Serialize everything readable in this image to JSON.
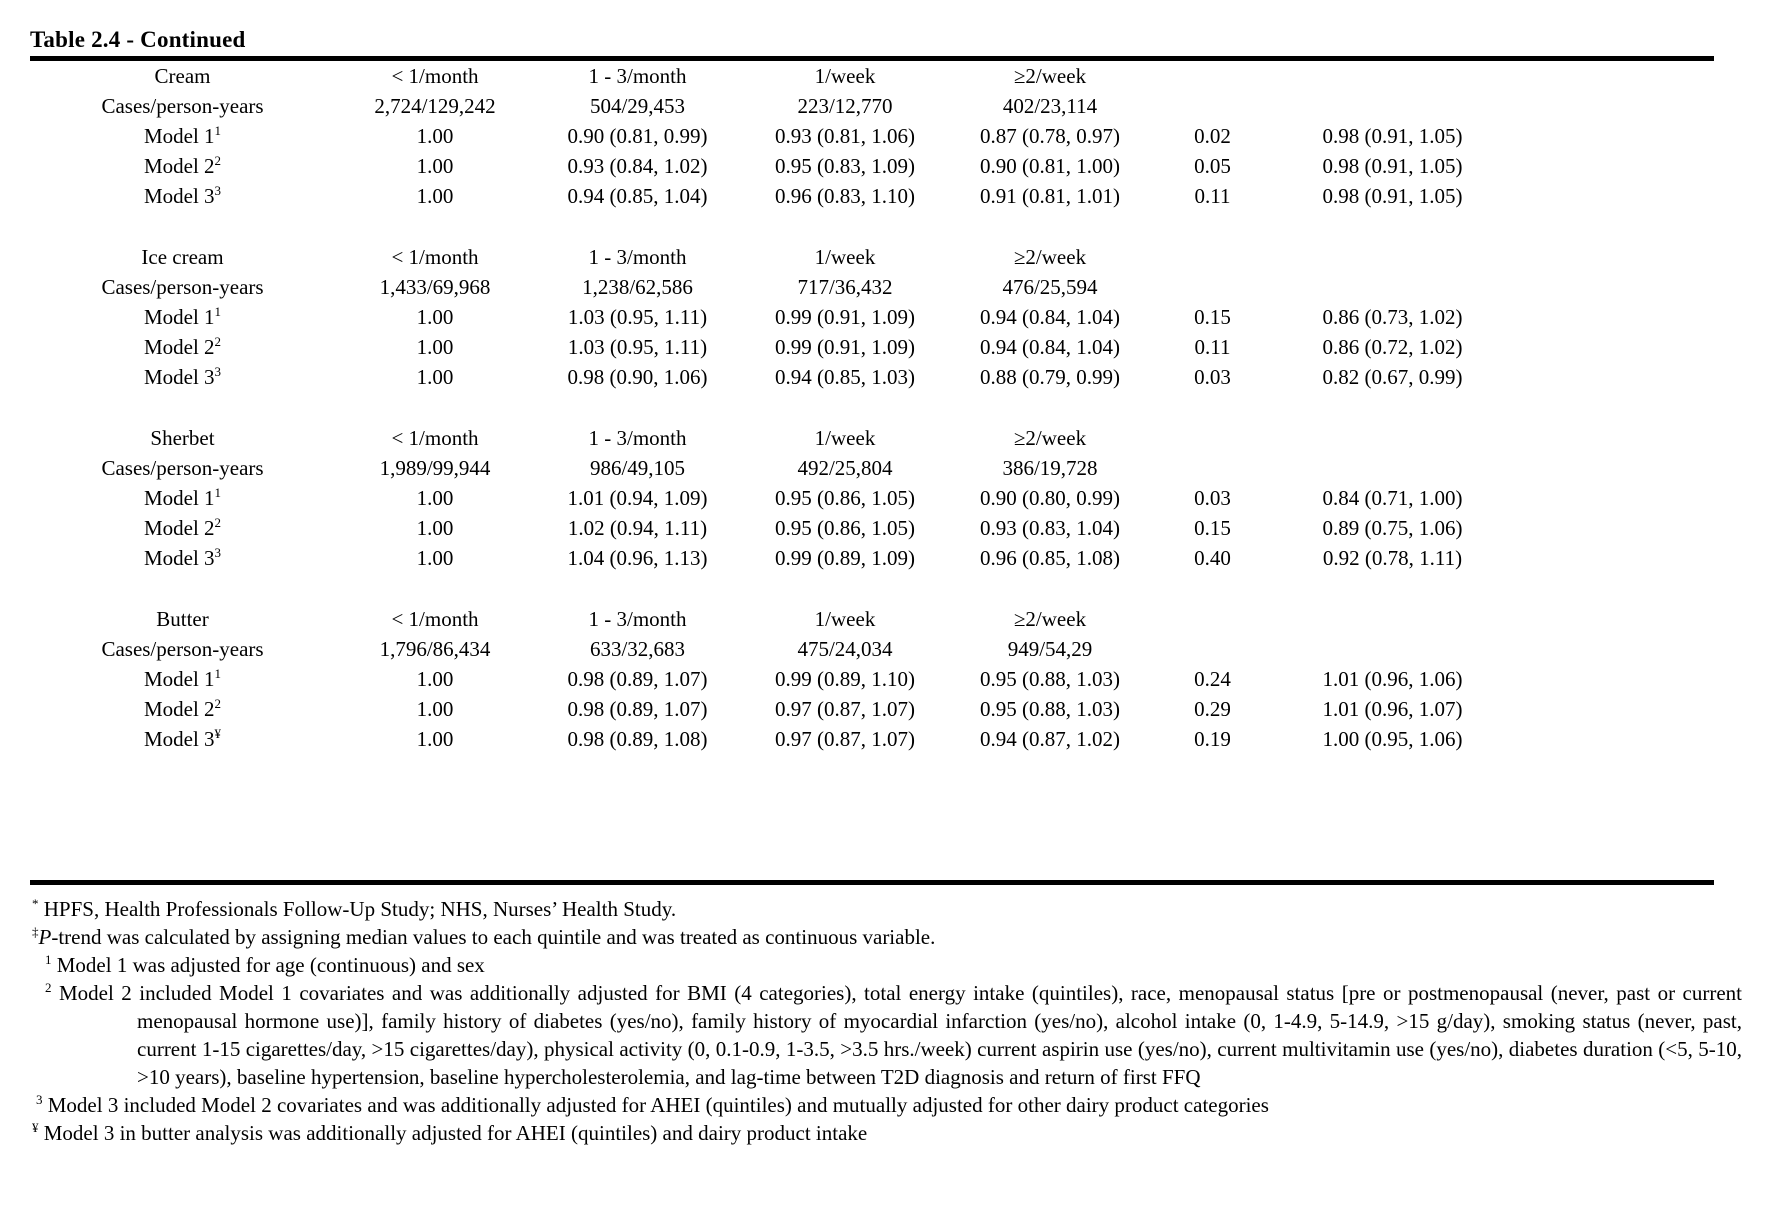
{
  "title": "Table 2.4 - Continued",
  "frequency_headers": [
    "< 1/month",
    "1 - 3/month",
    "1/week",
    "≥2/week"
  ],
  "cases_row_label": "Cases/person-years",
  "sections": [
    {
      "food": "Cream",
      "cases": [
        "2,724/129,242",
        "504/29,453",
        "223/12,770",
        "402/23,114"
      ],
      "models": [
        {
          "label": "Model 1",
          "sup": "1",
          "values": [
            "1.00",
            "0.90 (0.81, 0.99)",
            "0.93 (0.81, 1.06)",
            "0.87 (0.78, 0.97)"
          ],
          "p_trend": "0.02",
          "continuous": "0.98 (0.91, 1.05)"
        },
        {
          "label": "Model 2",
          "sup": "2",
          "values": [
            "1.00",
            "0.93 (0.84, 1.02)",
            "0.95 (0.83, 1.09)",
            "0.90 (0.81, 1.00)"
          ],
          "p_trend": "0.05",
          "continuous": "0.98 (0.91, 1.05)"
        },
        {
          "label": "Model 3",
          "sup": "3",
          "values": [
            "1.00",
            "0.94 (0.85, 1.04)",
            "0.96 (0.83, 1.10)",
            "0.91 (0.81, 1.01)"
          ],
          "p_trend": "0.11",
          "continuous": "0.98 (0.91, 1.05)"
        }
      ]
    },
    {
      "food": "Ice cream",
      "cases": [
        "1,433/69,968",
        "1,238/62,586",
        "717/36,432",
        "476/25,594"
      ],
      "models": [
        {
          "label": "Model 1",
          "sup": "1",
          "values": [
            "1.00",
            "1.03 (0.95, 1.11)",
            "0.99 (0.91, 1.09)",
            "0.94 (0.84, 1.04)"
          ],
          "p_trend": "0.15",
          "continuous": "0.86 (0.73, 1.02)"
        },
        {
          "label": "Model 2",
          "sup": "2",
          "values": [
            "1.00",
            "1.03 (0.95, 1.11)",
            "0.99 (0.91, 1.09)",
            "0.94 (0.84, 1.04)"
          ],
          "p_trend": "0.11",
          "continuous": "0.86 (0.72, 1.02)"
        },
        {
          "label": "Model 3",
          "sup": "3",
          "values": [
            "1.00",
            "0.98 (0.90, 1.06)",
            "0.94 (0.85, 1.03)",
            "0.88 (0.79, 0.99)"
          ],
          "p_trend": "0.03",
          "continuous": "0.82 (0.67, 0.99)"
        }
      ]
    },
    {
      "food": "Sherbet",
      "cases": [
        "1,989/99,944",
        "986/49,105",
        "492/25,804",
        "386/19,728"
      ],
      "models": [
        {
          "label": "Model 1",
          "sup": "1",
          "values": [
            "1.00",
            "1.01 (0.94, 1.09)",
            "0.95 (0.86, 1.05)",
            "0.90 (0.80, 0.99)"
          ],
          "p_trend": "0.03",
          "continuous": "0.84 (0.71, 1.00)"
        },
        {
          "label": "Model 2",
          "sup": "2",
          "values": [
            "1.00",
            "1.02 (0.94, 1.11)",
            "0.95 (0.86, 1.05)",
            "0.93 (0.83, 1.04)"
          ],
          "p_trend": "0.15",
          "continuous": "0.89 (0.75, 1.06)"
        },
        {
          "label": "Model 3",
          "sup": "3",
          "values": [
            "1.00",
            "1.04 (0.96, 1.13)",
            "0.99 (0.89, 1.09)",
            "0.96 (0.85, 1.08)"
          ],
          "p_trend": "0.40",
          "continuous": "0.92 (0.78, 1.11)"
        }
      ]
    },
    {
      "food": "Butter",
      "cases": [
        "1,796/86,434",
        "633/32,683",
        "475/24,034",
        "949/54,29"
      ],
      "models": [
        {
          "label": "Model 1",
          "sup": "1",
          "values": [
            "1.00",
            "0.98 (0.89, 1.07)",
            "0.99 (0.89, 1.10)",
            "0.95 (0.88, 1.03)"
          ],
          "p_trend": "0.24",
          "continuous": "1.01 (0.96, 1.06)"
        },
        {
          "label": "Model 2",
          "sup": "2",
          "values": [
            "1.00",
            "0.98 (0.89, 1.07)",
            "0.97 (0.87, 1.07)",
            "0.95 (0.88, 1.03)"
          ],
          "p_trend": "0.29",
          "continuous": "1.01 (0.96, 1.07)"
        },
        {
          "label": "Model 3",
          "sup": "¥",
          "values": [
            "1.00",
            "0.98 (0.89, 1.08)",
            "0.97 (0.87, 1.07)",
            "0.94 (0.87, 1.02)"
          ],
          "p_trend": "0.19",
          "continuous": "1.00 (0.95, 1.06)"
        }
      ]
    }
  ],
  "footnotes": [
    {
      "marker": "*",
      "text": "HPFS, Health Professionals Follow-Up Study; NHS, Nurses’ Health Study."
    },
    {
      "marker": "‡",
      "italic_prefix": "P",
      "text": "-trend was calculated by assigning median values to each quintile and was treated as continuous variable."
    },
    {
      "marker": "1",
      "text": "Model 1 was adjusted for age (continuous) and sex"
    },
    {
      "marker": "2",
      "text": "Model 2 included Model 1 covariates and was additionally adjusted for BMI (4 categories), total energy intake (quintiles), race, menopausal status [pre or postmenopausal (never, past or current menopausal hormone use)], family history of diabetes (yes/no), family history of myocardial infarction (yes/no), alcohol intake (0, 1-4.9, 5-14.9, >15 g/day), smoking status (never, past, current 1-15 cigarettes/day, >15 cigarettes/day), physical activity (0, 0.1-0.9, 1-3.5, >3.5 hrs./week) current aspirin use (yes/no), current multivitamin use (yes/no),  diabetes duration (<5, 5-10, >10 years), baseline hypertension, baseline hypercholesterolemia, and lag-time between T2D diagnosis and return of first FFQ"
    },
    {
      "marker": "3",
      "text": "Model 3 included Model 2 covariates and was additionally adjusted for AHEI (quintiles) and mutually adjusted for other dairy product categories"
    },
    {
      "marker": "¥",
      "text": "Model 3 in butter analysis was additionally adjusted for AHEI (quintiles) and dairy product intake"
    }
  ]
}
